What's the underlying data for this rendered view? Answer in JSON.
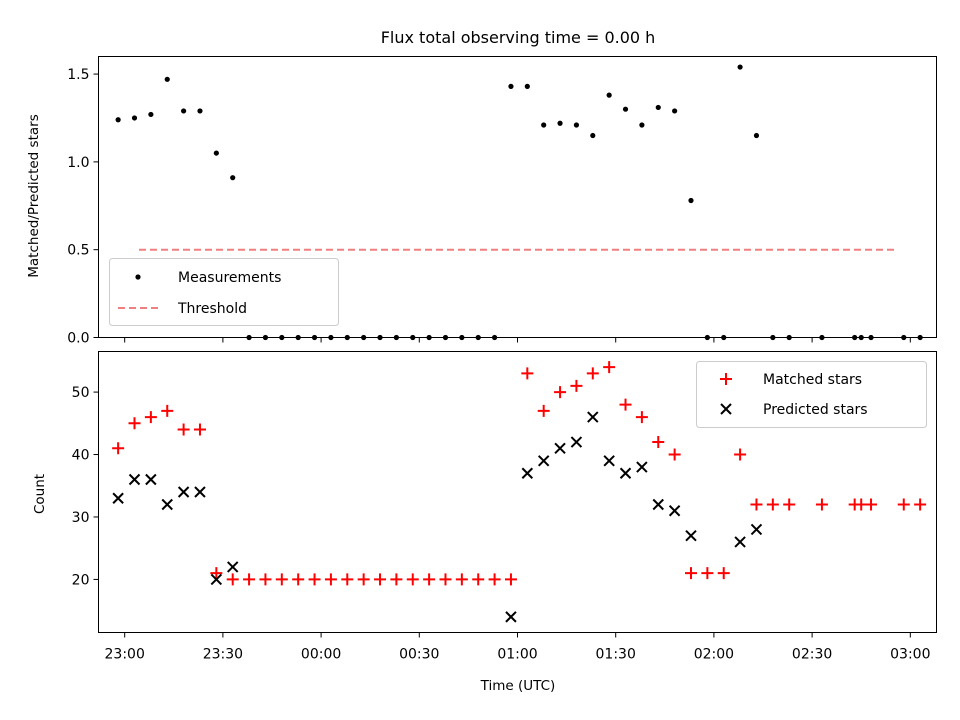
{
  "chart_data": [
    {
      "type": "scatter",
      "title": "Flux total observing time = 0.00 h",
      "ylabel": "Matched/Predicted stars",
      "xlabel": "",
      "ylim": [
        0,
        1.6
      ],
      "yticks": [
        "0.0",
        "0.5",
        "1.0",
        "1.5"
      ],
      "threshold": 0.5,
      "legend_position": "lower-left",
      "legend": [
        "Measurements",
        "Threshold"
      ],
      "colors": {
        "measurements": "#000000",
        "threshold": "#f08080"
      },
      "x": [
        "22:58",
        "23:03",
        "23:08",
        "23:13",
        "23:18",
        "23:23",
        "23:28",
        "23:33",
        "23:38",
        "23:43",
        "23:48",
        "23:53",
        "23:58",
        "00:03",
        "00:08",
        "00:13",
        "00:18",
        "00:23",
        "00:28",
        "00:33",
        "00:38",
        "00:43",
        "00:48",
        "00:53",
        "00:58",
        "01:03",
        "01:08",
        "01:13",
        "01:18",
        "01:23",
        "01:28",
        "01:33",
        "01:38",
        "01:43",
        "01:48",
        "01:53",
        "01:58",
        "02:03",
        "02:08",
        "02:13",
        "02:18",
        "02:23",
        "02:33",
        "02:43",
        "02:45",
        "02:48",
        "02:58",
        "03:03"
      ],
      "y": [
        1.24,
        1.25,
        1.27,
        1.47,
        1.29,
        1.29,
        1.05,
        0.91,
        0,
        0,
        0,
        0,
        0,
        0,
        0,
        0,
        0,
        0,
        0,
        0,
        0,
        0,
        0,
        0,
        1.43,
        1.43,
        1.21,
        1.22,
        1.21,
        1.15,
        1.38,
        1.3,
        1.21,
        1.31,
        1.29,
        0.78,
        0,
        0,
        1.54,
        1.15,
        0,
        0,
        0,
        0,
        0,
        0,
        0,
        0
      ]
    },
    {
      "type": "scatter",
      "title": "",
      "ylabel": "Count",
      "xlabel": "Time (UTC)",
      "ylim": [
        11.5,
        56.5
      ],
      "yticks": [
        "20",
        "30",
        "40",
        "50"
      ],
      "xlim": [
        "22:52",
        "03:08"
      ],
      "xticks": [
        "23:00",
        "23:30",
        "00:00",
        "00:30",
        "01:00",
        "01:30",
        "02:00",
        "02:30",
        "03:00"
      ],
      "legend_position": "upper-right",
      "colors": {
        "matched": "#ff0000",
        "predicted": "#000000"
      },
      "series": [
        {
          "name": "Matched stars",
          "x": [
            "22:58",
            "23:03",
            "23:08",
            "23:13",
            "23:18",
            "23:23",
            "23:28",
            "23:33",
            "23:38",
            "23:43",
            "23:48",
            "23:53",
            "23:58",
            "00:03",
            "00:08",
            "00:13",
            "00:18",
            "00:23",
            "00:28",
            "00:33",
            "00:38",
            "00:43",
            "00:48",
            "00:53",
            "00:58",
            "01:03",
            "01:08",
            "01:13",
            "01:18",
            "01:23",
            "01:28",
            "01:33",
            "01:38",
            "01:43",
            "01:48",
            "01:53",
            "01:58",
            "02:03",
            "02:08",
            "02:13",
            "02:18",
            "02:23",
            "02:33",
            "02:43",
            "02:45",
            "02:48",
            "02:58",
            "03:03"
          ],
          "values": [
            41,
            45,
            46,
            47,
            44,
            44,
            21,
            20,
            20,
            20,
            20,
            20,
            20,
            20,
            20,
            20,
            20,
            20,
            20,
            20,
            20,
            20,
            20,
            20,
            20,
            53,
            47,
            50,
            51,
            53,
            54,
            48,
            46,
            42,
            40,
            21,
            21,
            21,
            40,
            32,
            32,
            32,
            32,
            32,
            32,
            32,
            32,
            32
          ]
        },
        {
          "name": "Predicted stars",
          "x": [
            "22:58",
            "23:03",
            "23:08",
            "23:13",
            "23:18",
            "23:23",
            "23:28",
            "23:33",
            "00:58",
            "01:03",
            "01:08",
            "01:13",
            "01:18",
            "01:23",
            "01:28",
            "01:33",
            "01:38",
            "01:43",
            "01:48",
            "01:53",
            "02:08",
            "02:13"
          ],
          "values": [
            33,
            36,
            36,
            32,
            34,
            34,
            20,
            22,
            14,
            37,
            39,
            41,
            42,
            46,
            39,
            37,
            38,
            32,
            31,
            27,
            26,
            28
          ]
        }
      ]
    }
  ]
}
